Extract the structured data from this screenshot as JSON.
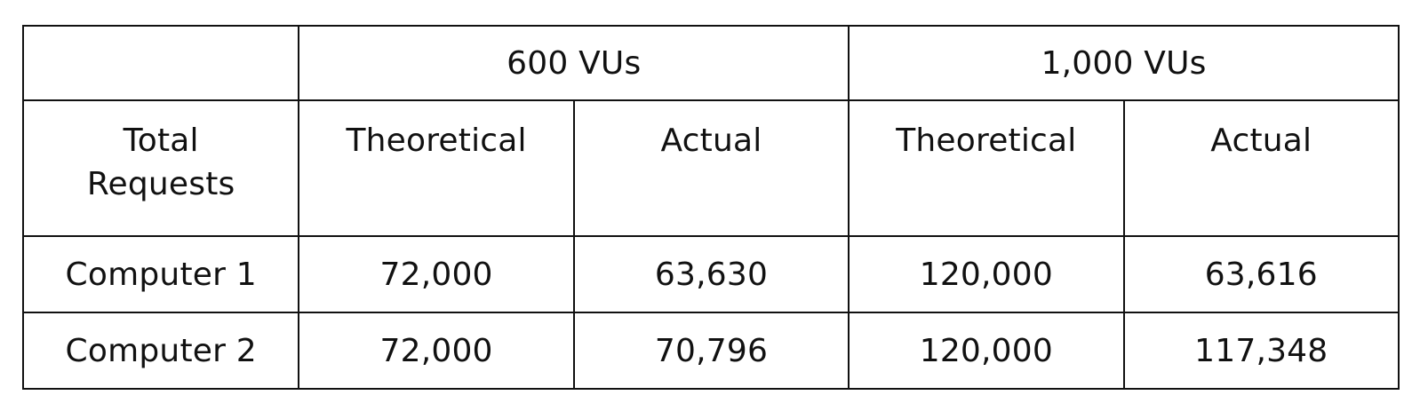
{
  "table": {
    "corner": "",
    "groups": [
      {
        "label": "600 VUs"
      },
      {
        "label": "1,000 VUs"
      }
    ],
    "row_header": [
      "Total",
      "Requests"
    ],
    "subheaders": [
      "Theoretical",
      "Actual",
      "Theoretical",
      "Actual"
    ],
    "rows": [
      {
        "label": "Computer 1",
        "cells": [
          "72,000",
          "63,630",
          "120,000",
          "63,616"
        ]
      },
      {
        "label": "Computer 2",
        "cells": [
          "72,000",
          "70,796",
          "120,000",
          "117,348"
        ]
      }
    ]
  }
}
